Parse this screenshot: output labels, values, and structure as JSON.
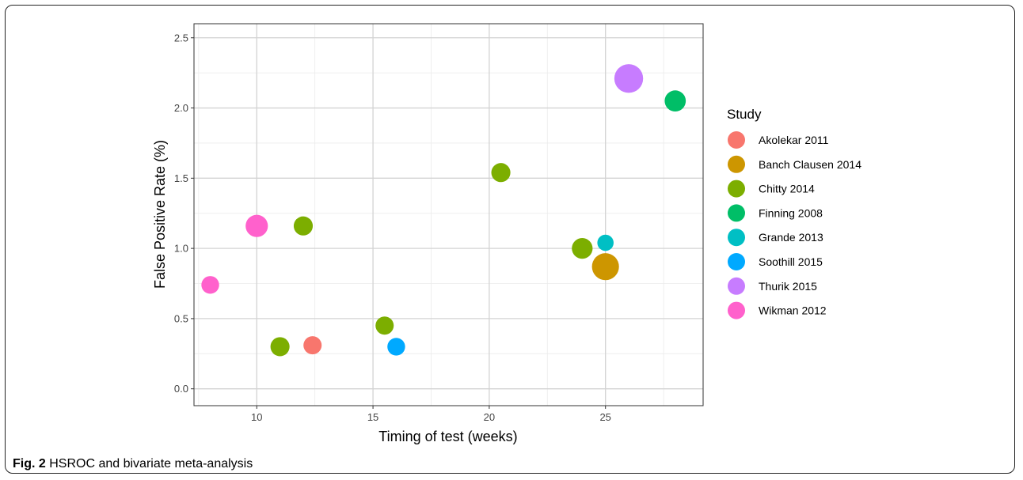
{
  "caption": {
    "label": "Fig. 2",
    "text": "HSROC and bivariate meta-analysis"
  },
  "chart_data": {
    "type": "scatter",
    "title": "",
    "xlabel": "Timing of test (weeks)",
    "ylabel": "False Positive Rate (%)",
    "xlim": [
      7.3,
      29.2
    ],
    "ylim": [
      -0.12,
      2.6
    ],
    "x_ticks": [
      10,
      15,
      20,
      25
    ],
    "y_ticks": [
      0.0,
      0.5,
      1.0,
      1.5,
      2.0,
      2.5
    ],
    "x_tick_labels": [
      "10",
      "15",
      "20",
      "25"
    ],
    "y_tick_labels": [
      "0.0",
      "0.5",
      "1.0",
      "1.5",
      "2.0",
      "2.5"
    ],
    "grid": true,
    "legend_title": "Study",
    "legend_position": "right",
    "series": [
      {
        "name": "Akolekar 2011",
        "color": "#F8766D",
        "points": [
          {
            "x": 12.4,
            "y": 0.31,
            "size": 1.0
          }
        ]
      },
      {
        "name": "Banch Clausen 2014",
        "color": "#CD9600",
        "points": [
          {
            "x": 25.0,
            "y": 0.87,
            "size": 2.2
          }
        ]
      },
      {
        "name": "Chitty 2014",
        "color": "#7CAE00",
        "points": [
          {
            "x": 11.0,
            "y": 0.3,
            "size": 1.1
          },
          {
            "x": 12.0,
            "y": 1.16,
            "size": 1.1
          },
          {
            "x": 15.5,
            "y": 0.45,
            "size": 1.0
          },
          {
            "x": 20.5,
            "y": 1.54,
            "size": 1.1
          },
          {
            "x": 24.0,
            "y": 1.0,
            "size": 1.3
          }
        ]
      },
      {
        "name": "Finning 2008",
        "color": "#00BE67",
        "points": [
          {
            "x": 28.0,
            "y": 2.05,
            "size": 1.35
          }
        ]
      },
      {
        "name": "Grande 2013",
        "color": "#00BFC4",
        "points": [
          {
            "x": 25.0,
            "y": 1.04,
            "size": 0.8
          }
        ]
      },
      {
        "name": "Soothill 2015",
        "color": "#00A9FF",
        "points": [
          {
            "x": 16.0,
            "y": 0.3,
            "size": 0.95
          }
        ]
      },
      {
        "name": "Thurik 2015",
        "color": "#C77CFF",
        "points": [
          {
            "x": 26.0,
            "y": 2.21,
            "size": 2.5
          }
        ]
      },
      {
        "name": "Wikman 2012",
        "color": "#FF61CC",
        "points": [
          {
            "x": 8.0,
            "y": 0.74,
            "size": 0.95
          },
          {
            "x": 10.0,
            "y": 1.16,
            "size": 1.5
          }
        ]
      }
    ]
  }
}
